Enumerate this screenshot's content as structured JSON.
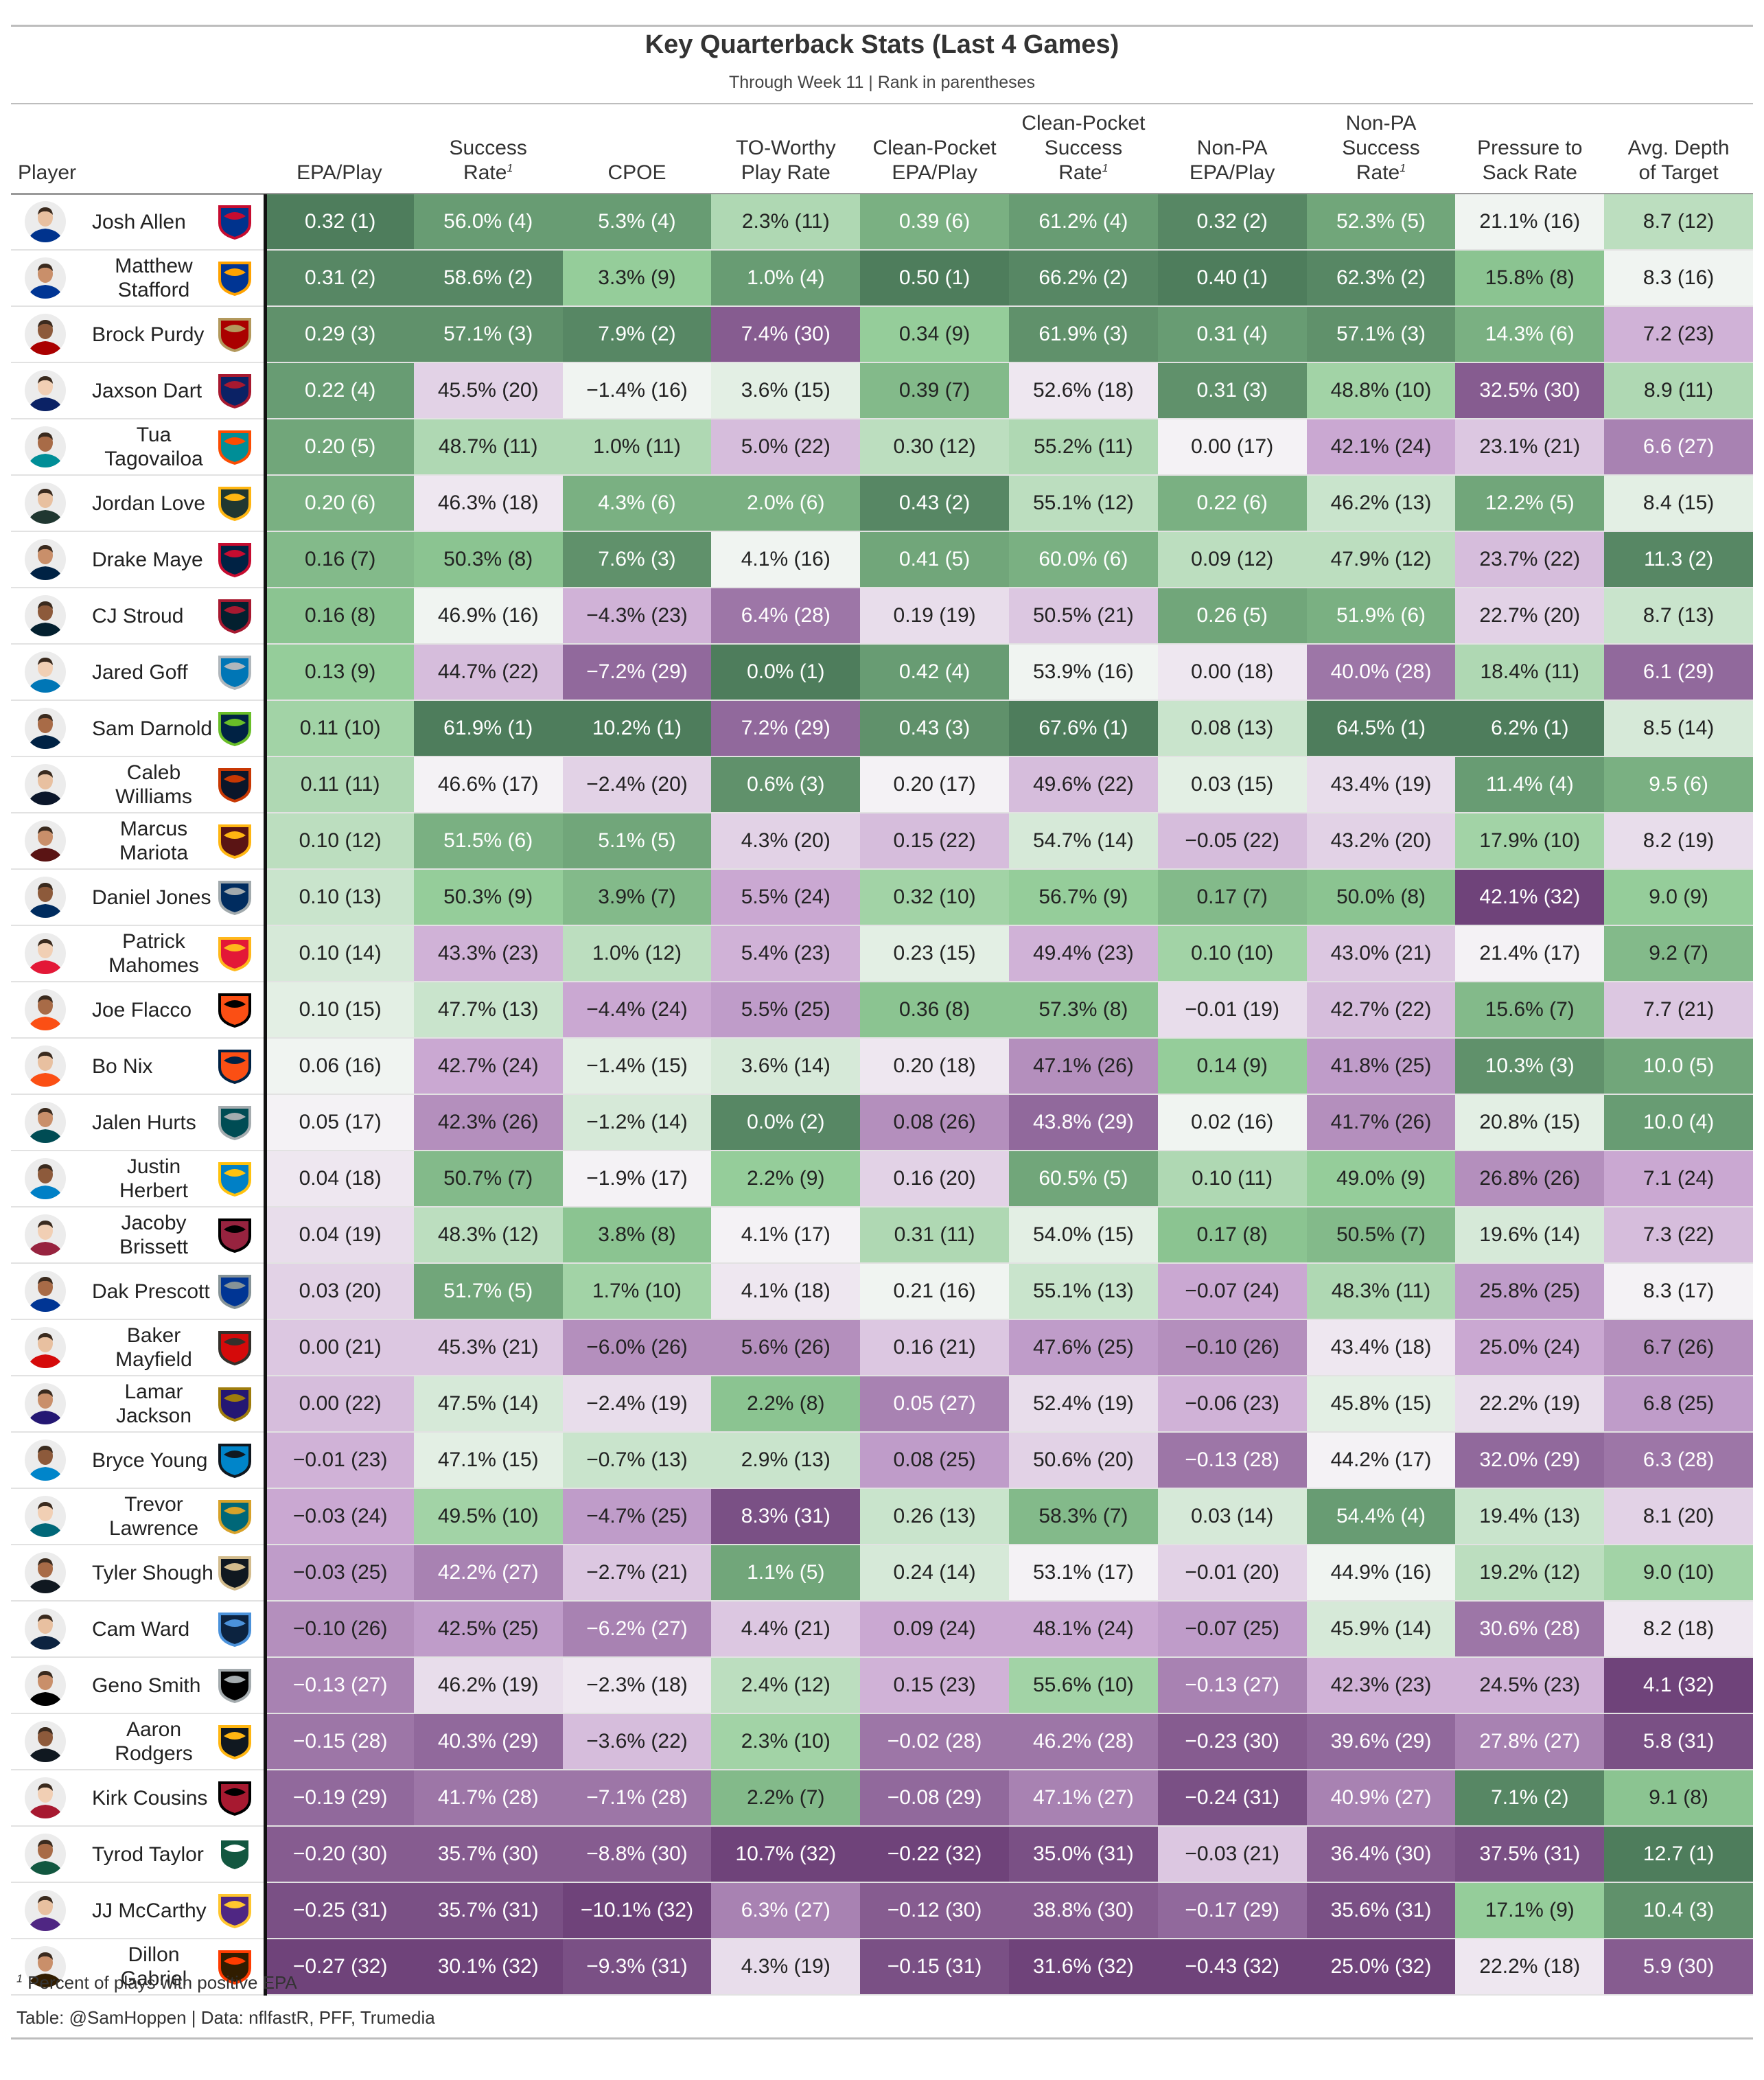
{
  "chart_data": {
    "type": "table",
    "title": "Key Quarterback Stats (Last 4 Games)",
    "subtitle": "Through Week 11 | Rank in parentheses",
    "player_header": "Player",
    "columns": [
      {
        "key": "epa",
        "line1": "",
        "line2": "EPA/Play",
        "sup": ""
      },
      {
        "key": "sr",
        "line1": "Success",
        "line2": "Rate",
        "sup": "1"
      },
      {
        "key": "cpoe",
        "line1": "",
        "line2": "CPOE",
        "sup": ""
      },
      {
        "key": "to",
        "line1": "TO-Worthy",
        "line2": "Play Rate",
        "sup": ""
      },
      {
        "key": "cpepa",
        "line1": "Clean-Pocket",
        "line2": "EPA/Play",
        "sup": ""
      },
      {
        "key": "cpsr",
        "line1": "Clean-Pocket\nSuccess",
        "line2": "Rate",
        "sup": "1"
      },
      {
        "key": "npepa",
        "line1": "Non-PA",
        "line2": "EPA/Play",
        "sup": ""
      },
      {
        "key": "npsr",
        "line1": "Non-PA\nSuccess",
        "line2": "Rate",
        "sup": "1"
      },
      {
        "key": "p2s",
        "line1": "Pressure to",
        "line2": "Sack Rate",
        "sup": ""
      },
      {
        "key": "adot",
        "line1": "Avg. Depth",
        "line2": "of Target",
        "sup": ""
      }
    ],
    "better_when_low": [
      "to",
      "p2s"
    ],
    "rows": [
      {
        "player": "Josh Allen",
        "team": "BUF",
        "epa": "0.32 (1)",
        "sr": "56.0% (4)",
        "cpoe": "5.3% (4)",
        "to": "2.3% (11)",
        "cpepa": "0.39 (6)",
        "cpsr": "61.2% (4)",
        "npepa": "0.32 (2)",
        "npsr": "52.3% (5)",
        "p2s": "21.1% (16)",
        "adot": "8.7 (12)"
      },
      {
        "player": "Matthew Stafford",
        "team": "LAR",
        "epa": "0.31 (2)",
        "sr": "58.6% (2)",
        "cpoe": "3.3% (9)",
        "to": "1.0% (4)",
        "cpepa": "0.50 (1)",
        "cpsr": "66.2% (2)",
        "npepa": "0.40 (1)",
        "npsr": "62.3% (2)",
        "p2s": "15.8% (8)",
        "adot": "8.3 (16)"
      },
      {
        "player": "Brock Purdy",
        "team": "SF",
        "epa": "0.29 (3)",
        "sr": "57.1% (3)",
        "cpoe": "7.9% (2)",
        "to": "7.4% (30)",
        "cpepa": "0.34 (9)",
        "cpsr": "61.9% (3)",
        "npepa": "0.31 (4)",
        "npsr": "57.1% (3)",
        "p2s": "14.3% (6)",
        "adot": "7.2 (23)"
      },
      {
        "player": "Jaxson Dart",
        "team": "NYG",
        "epa": "0.22 (4)",
        "sr": "45.5% (20)",
        "cpoe": "−1.4% (16)",
        "to": "3.6% (15)",
        "cpepa": "0.39 (7)",
        "cpsr": "52.6% (18)",
        "npepa": "0.31 (3)",
        "npsr": "48.8% (10)",
        "p2s": "32.5% (30)",
        "adot": "8.9 (11)"
      },
      {
        "player": "Tua Tagovailoa",
        "team": "MIA",
        "epa": "0.20 (5)",
        "sr": "48.7% (11)",
        "cpoe": "1.0% (11)",
        "to": "5.0% (22)",
        "cpepa": "0.30 (12)",
        "cpsr": "55.2% (11)",
        "npepa": "0.00 (17)",
        "npsr": "42.1% (24)",
        "p2s": "23.1% (21)",
        "adot": "6.6 (27)"
      },
      {
        "player": "Jordan Love",
        "team": "GB",
        "epa": "0.20 (6)",
        "sr": "46.3% (18)",
        "cpoe": "4.3% (6)",
        "to": "2.0% (6)",
        "cpepa": "0.43 (2)",
        "cpsr": "55.1% (12)",
        "npepa": "0.22 (6)",
        "npsr": "46.2% (13)",
        "p2s": "12.2% (5)",
        "adot": "8.4 (15)"
      },
      {
        "player": "Drake Maye",
        "team": "NE",
        "epa": "0.16 (7)",
        "sr": "50.3% (8)",
        "cpoe": "7.6% (3)",
        "to": "4.1% (16)",
        "cpepa": "0.41 (5)",
        "cpsr": "60.0% (6)",
        "npepa": "0.09 (12)",
        "npsr": "47.9% (12)",
        "p2s": "23.7% (22)",
        "adot": "11.3 (2)"
      },
      {
        "player": "CJ Stroud",
        "team": "HOU",
        "epa": "0.16 (8)",
        "sr": "46.9% (16)",
        "cpoe": "−4.3% (23)",
        "to": "6.4% (28)",
        "cpepa": "0.19 (19)",
        "cpsr": "50.5% (21)",
        "npepa": "0.26 (5)",
        "npsr": "51.9% (6)",
        "p2s": "22.7% (20)",
        "adot": "8.7 (13)"
      },
      {
        "player": "Jared Goff",
        "team": "DET",
        "epa": "0.13 (9)",
        "sr": "44.7% (22)",
        "cpoe": "−7.2% (29)",
        "to": "0.0% (1)",
        "cpepa": "0.42 (4)",
        "cpsr": "53.9% (16)",
        "npepa": "0.00 (18)",
        "npsr": "40.0% (28)",
        "p2s": "18.4% (11)",
        "adot": "6.1 (29)"
      },
      {
        "player": "Sam Darnold",
        "team": "SEA",
        "epa": "0.11 (10)",
        "sr": "61.9% (1)",
        "cpoe": "10.2% (1)",
        "to": "7.2% (29)",
        "cpepa": "0.43 (3)",
        "cpsr": "67.6% (1)",
        "npepa": "0.08 (13)",
        "npsr": "64.5% (1)",
        "p2s": "6.2% (1)",
        "adot": "8.5 (14)"
      },
      {
        "player": "Caleb Williams",
        "team": "CHI",
        "epa": "0.11 (11)",
        "sr": "46.6% (17)",
        "cpoe": "−2.4% (20)",
        "to": "0.6% (3)",
        "cpepa": "0.20 (17)",
        "cpsr": "49.6% (22)",
        "npepa": "0.03 (15)",
        "npsr": "43.4% (19)",
        "p2s": "11.4% (4)",
        "adot": "9.5 (6)"
      },
      {
        "player": "Marcus Mariota",
        "team": "WAS",
        "epa": "0.10 (12)",
        "sr": "51.5% (6)",
        "cpoe": "5.1% (5)",
        "to": "4.3% (20)",
        "cpepa": "0.15 (22)",
        "cpsr": "54.7% (14)",
        "npepa": "−0.05 (22)",
        "npsr": "43.2% (20)",
        "p2s": "17.9% (10)",
        "adot": "8.2 (19)"
      },
      {
        "player": "Daniel Jones",
        "team": "IND",
        "epa": "0.10 (13)",
        "sr": "50.3% (9)",
        "cpoe": "3.9% (7)",
        "to": "5.5% (24)",
        "cpepa": "0.32 (10)",
        "cpsr": "56.7% (9)",
        "npepa": "0.17 (7)",
        "npsr": "50.0% (8)",
        "p2s": "42.1% (32)",
        "adot": "9.0 (9)"
      },
      {
        "player": "Patrick Mahomes",
        "team": "KC",
        "epa": "0.10 (14)",
        "sr": "43.3% (23)",
        "cpoe": "1.0% (12)",
        "to": "5.4% (23)",
        "cpepa": "0.23 (15)",
        "cpsr": "49.4% (23)",
        "npepa": "0.10 (10)",
        "npsr": "43.0% (21)",
        "p2s": "21.4% (17)",
        "adot": "9.2 (7)"
      },
      {
        "player": "Joe Flacco",
        "team": "CIN",
        "epa": "0.10 (15)",
        "sr": "47.7% (13)",
        "cpoe": "−4.4% (24)",
        "to": "5.5% (25)",
        "cpepa": "0.36 (8)",
        "cpsr": "57.3% (8)",
        "npepa": "−0.01 (19)",
        "npsr": "42.7% (22)",
        "p2s": "15.6% (7)",
        "adot": "7.7 (21)"
      },
      {
        "player": "Bo Nix",
        "team": "DEN",
        "epa": "0.06 (16)",
        "sr": "42.7% (24)",
        "cpoe": "−1.4% (15)",
        "to": "3.6% (14)",
        "cpepa": "0.20 (18)",
        "cpsr": "47.1% (26)",
        "npepa": "0.14 (9)",
        "npsr": "41.8% (25)",
        "p2s": "10.3% (3)",
        "adot": "10.0 (5)"
      },
      {
        "player": "Jalen Hurts",
        "team": "PHI",
        "epa": "0.05 (17)",
        "sr": "42.3% (26)",
        "cpoe": "−1.2% (14)",
        "to": "0.0% (2)",
        "cpepa": "0.08 (26)",
        "cpsr": "43.8% (29)",
        "npepa": "0.02 (16)",
        "npsr": "41.7% (26)",
        "p2s": "20.8% (15)",
        "adot": "10.0 (4)"
      },
      {
        "player": "Justin Herbert",
        "team": "LAC",
        "epa": "0.04 (18)",
        "sr": "50.7% (7)",
        "cpoe": "−1.9% (17)",
        "to": "2.2% (9)",
        "cpepa": "0.16 (20)",
        "cpsr": "60.5% (5)",
        "npepa": "0.10 (11)",
        "npsr": "49.0% (9)",
        "p2s": "26.8% (26)",
        "adot": "7.1 (24)"
      },
      {
        "player": "Jacoby Brissett",
        "team": "ARI",
        "epa": "0.04 (19)",
        "sr": "48.3% (12)",
        "cpoe": "3.8% (8)",
        "to": "4.1% (17)",
        "cpepa": "0.31 (11)",
        "cpsr": "54.0% (15)",
        "npepa": "0.17 (8)",
        "npsr": "50.5% (7)",
        "p2s": "19.6% (14)",
        "adot": "7.3 (22)"
      },
      {
        "player": "Dak Prescott",
        "team": "DAL",
        "epa": "0.03 (20)",
        "sr": "51.7% (5)",
        "cpoe": "1.7% (10)",
        "to": "4.1% (18)",
        "cpepa": "0.21 (16)",
        "cpsr": "55.1% (13)",
        "npepa": "−0.07 (24)",
        "npsr": "48.3% (11)",
        "p2s": "25.8% (25)",
        "adot": "8.3 (17)"
      },
      {
        "player": "Baker Mayfield",
        "team": "TB",
        "epa": "0.00 (21)",
        "sr": "45.3% (21)",
        "cpoe": "−6.0% (26)",
        "to": "5.6% (26)",
        "cpepa": "0.16 (21)",
        "cpsr": "47.6% (25)",
        "npepa": "−0.10 (26)",
        "npsr": "43.4% (18)",
        "p2s": "25.0% (24)",
        "adot": "6.7 (26)"
      },
      {
        "player": "Lamar Jackson",
        "team": "BAL",
        "epa": "0.00 (22)",
        "sr": "47.5% (14)",
        "cpoe": "−2.4% (19)",
        "to": "2.2% (8)",
        "cpepa": "0.05 (27)",
        "cpsr": "52.4% (19)",
        "npepa": "−0.06 (23)",
        "npsr": "45.8% (15)",
        "p2s": "22.2% (19)",
        "adot": "6.8 (25)"
      },
      {
        "player": "Bryce Young",
        "team": "CAR",
        "epa": "−0.01 (23)",
        "sr": "47.1% (15)",
        "cpoe": "−0.7% (13)",
        "to": "2.9% (13)",
        "cpepa": "0.08 (25)",
        "cpsr": "50.6% (20)",
        "npepa": "−0.13 (28)",
        "npsr": "44.2% (17)",
        "p2s": "32.0% (29)",
        "adot": "6.3 (28)"
      },
      {
        "player": "Trevor Lawrence",
        "team": "JAX",
        "epa": "−0.03 (24)",
        "sr": "49.5% (10)",
        "cpoe": "−4.7% (25)",
        "to": "8.3% (31)",
        "cpepa": "0.26 (13)",
        "cpsr": "58.3% (7)",
        "npepa": "0.03 (14)",
        "npsr": "54.4% (4)",
        "p2s": "19.4% (13)",
        "adot": "8.1 (20)"
      },
      {
        "player": "Tyler Shough",
        "team": "NO",
        "epa": "−0.03 (25)",
        "sr": "42.2% (27)",
        "cpoe": "−2.7% (21)",
        "to": "1.1% (5)",
        "cpepa": "0.24 (14)",
        "cpsr": "53.1% (17)",
        "npepa": "−0.01 (20)",
        "npsr": "44.9% (16)",
        "p2s": "19.2% (12)",
        "adot": "9.0 (10)"
      },
      {
        "player": "Cam Ward",
        "team": "TEN",
        "epa": "−0.10 (26)",
        "sr": "42.5% (25)",
        "cpoe": "−6.2% (27)",
        "to": "4.4% (21)",
        "cpepa": "0.09 (24)",
        "cpsr": "48.1% (24)",
        "npepa": "−0.07 (25)",
        "npsr": "45.9% (14)",
        "p2s": "30.6% (28)",
        "adot": "8.2 (18)"
      },
      {
        "player": "Geno Smith",
        "team": "LV",
        "epa": "−0.13 (27)",
        "sr": "46.2% (19)",
        "cpoe": "−2.3% (18)",
        "to": "2.4% (12)",
        "cpepa": "0.15 (23)",
        "cpsr": "55.6% (10)",
        "npepa": "−0.13 (27)",
        "npsr": "42.3% (23)",
        "p2s": "24.5% (23)",
        "adot": "4.1 (32)"
      },
      {
        "player": "Aaron Rodgers",
        "team": "PIT",
        "epa": "−0.15 (28)",
        "sr": "40.3% (29)",
        "cpoe": "−3.6% (22)",
        "to": "2.3% (10)",
        "cpepa": "−0.02 (28)",
        "cpsr": "46.2% (28)",
        "npepa": "−0.23 (30)",
        "npsr": "39.6% (29)",
        "p2s": "27.8% (27)",
        "adot": "5.8 (31)"
      },
      {
        "player": "Kirk Cousins",
        "team": "ATL",
        "epa": "−0.19 (29)",
        "sr": "41.7% (28)",
        "cpoe": "−7.1% (28)",
        "to": "2.2% (7)",
        "cpepa": "−0.08 (29)",
        "cpsr": "47.1% (27)",
        "npepa": "−0.24 (31)",
        "npsr": "40.9% (27)",
        "p2s": "7.1% (2)",
        "adot": "9.1 (8)"
      },
      {
        "player": "Tyrod Taylor",
        "team": "NYJ",
        "epa": "−0.20 (30)",
        "sr": "35.7% (30)",
        "cpoe": "−8.8% (30)",
        "to": "10.7% (32)",
        "cpepa": "−0.22 (32)",
        "cpsr": "35.0% (31)",
        "npepa": "−0.03 (21)",
        "npsr": "36.4% (30)",
        "p2s": "37.5% (31)",
        "adot": "12.7 (1)"
      },
      {
        "player": "JJ McCarthy",
        "team": "MIN",
        "epa": "−0.25 (31)",
        "sr": "35.7% (31)",
        "cpoe": "−10.1% (32)",
        "to": "6.3% (27)",
        "cpepa": "−0.12 (30)",
        "cpsr": "38.8% (30)",
        "npepa": "−0.17 (29)",
        "npsr": "35.6% (31)",
        "p2s": "17.1% (9)",
        "adot": "10.4 (3)"
      },
      {
        "player": "Dillon Gabriel",
        "team": "CLE",
        "epa": "−0.27 (32)",
        "sr": "30.1% (32)",
        "cpoe": "−9.3% (31)",
        "to": "4.3% (19)",
        "cpepa": "−0.15 (31)",
        "cpsr": "31.6% (32)",
        "npepa": "−0.43 (32)",
        "npsr": "25.0% (32)",
        "p2s": "22.2% (18)",
        "adot": "5.9 (30)"
      }
    ],
    "footnote_mark": "1",
    "footnote": "Percent of plays with positive EPA",
    "source": "Table: @SamHoppen | Data: nflfastR, PFF, Trumedia",
    "colors": {
      "good_dark": "#4e7d5c",
      "good_mid": "#92cc97",
      "neutral": "#f7f7f7",
      "bad_mid": "#c8a5d1",
      "bad_dark": "#6f437a"
    }
  }
}
